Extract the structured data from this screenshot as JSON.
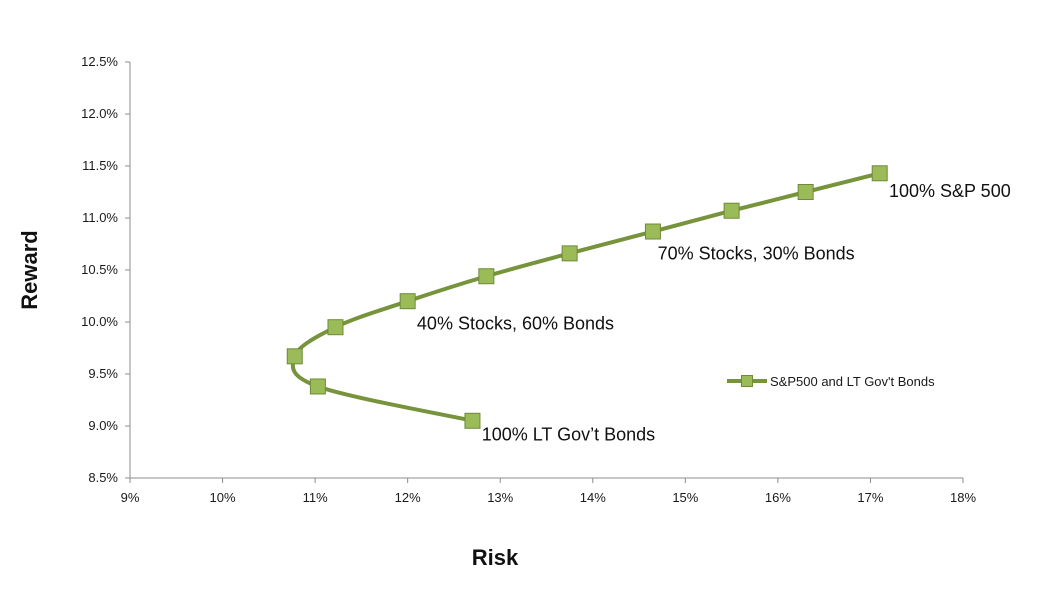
{
  "chart_data": {
    "type": "line",
    "xlabel": "Risk",
    "ylabel": "Reward",
    "xlim": [
      9,
      18
    ],
    "ylim": [
      8.5,
      12.5
    ],
    "x_ticks": [
      "9%",
      "10%",
      "11%",
      "12%",
      "13%",
      "14%",
      "15%",
      "16%",
      "17%",
      "18%"
    ],
    "y_ticks": [
      "8.5%",
      "9.0%",
      "9.5%",
      "10.0%",
      "10.5%",
      "11.0%",
      "11.5%",
      "12.0%",
      "12.5%"
    ],
    "grid": false,
    "legend_position": "right",
    "series": [
      {
        "name": "S&P500 and LT Gov't Bonds",
        "color": "#77933c",
        "marker_color": "#9bbb59",
        "points": [
          {
            "x": 12.7,
            "y": 9.05
          },
          {
            "x": 11.03,
            "y": 9.38
          },
          {
            "x": 10.78,
            "y": 9.67
          },
          {
            "x": 11.22,
            "y": 9.95
          },
          {
            "x": 12.0,
            "y": 10.2
          },
          {
            "x": 12.85,
            "y": 10.44
          },
          {
            "x": 13.75,
            "y": 10.66
          },
          {
            "x": 14.65,
            "y": 10.87
          },
          {
            "x": 15.5,
            "y": 11.07
          },
          {
            "x": 16.3,
            "y": 11.25
          },
          {
            "x": 17.1,
            "y": 11.43
          }
        ]
      }
    ],
    "annotations": [
      {
        "text": "100% S&P 500",
        "x": 17.2,
        "y": 11.2
      },
      {
        "text": "70% Stocks,  30% Bonds",
        "x": 14.7,
        "y": 10.6
      },
      {
        "text": "40% Stocks, 60% Bonds",
        "x": 12.1,
        "y": 9.93
      },
      {
        "text": "100% LT Gov’t Bonds",
        "x": 12.8,
        "y": 8.86
      }
    ]
  }
}
